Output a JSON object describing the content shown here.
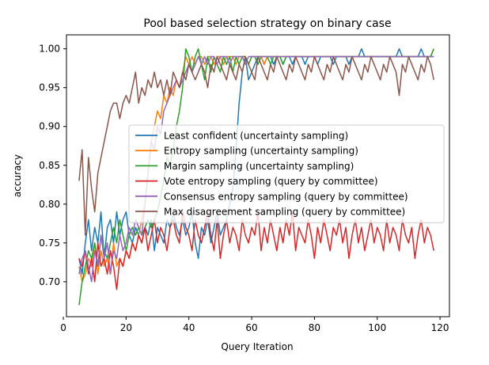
{
  "chart_data": {
    "type": "line",
    "title": "Pool based selection strategy on binary case",
    "xlabel": "Query Iteration",
    "ylabel": "accuracy",
    "xlim": [
      1,
      123
    ],
    "ylim": [
      0.655,
      1.018
    ],
    "x_ticks": [
      0,
      20,
      40,
      60,
      80,
      100,
      120
    ],
    "y_ticks": [
      0.7,
      0.75,
      0.8,
      0.85,
      0.9,
      0.95,
      1.0
    ],
    "y_tick_labels": [
      "0.70",
      "0.75",
      "0.80",
      "0.85",
      "0.90",
      "0.95",
      "1.00"
    ],
    "grid": false,
    "legend_position": "center-right",
    "x": [
      5,
      6,
      7,
      8,
      9,
      10,
      11,
      12,
      13,
      14,
      15,
      16,
      17,
      18,
      19,
      20,
      21,
      22,
      23,
      24,
      25,
      26,
      27,
      28,
      29,
      30,
      31,
      32,
      33,
      34,
      35,
      36,
      37,
      38,
      39,
      40,
      41,
      42,
      43,
      44,
      45,
      46,
      47,
      48,
      49,
      50,
      51,
      52,
      53,
      54,
      55,
      56,
      57,
      58,
      59,
      60,
      61,
      62,
      63,
      64,
      65,
      66,
      67,
      68,
      69,
      70,
      71,
      72,
      73,
      74,
      75,
      76,
      77,
      78,
      79,
      80,
      81,
      82,
      83,
      84,
      85,
      86,
      87,
      88,
      89,
      90,
      91,
      92,
      93,
      94,
      95,
      96,
      97,
      98,
      99,
      100,
      101,
      102,
      103,
      104,
      105,
      106,
      107,
      108,
      109,
      110,
      111,
      112,
      113,
      114,
      115,
      116,
      117,
      118
    ],
    "series": [
      {
        "name": "Least confident (uncertainty sampling)",
        "color": "#1f77b4",
        "values": [
          0.73,
          0.71,
          0.75,
          0.78,
          0.74,
          0.77,
          0.75,
          0.79,
          0.73,
          0.77,
          0.78,
          0.75,
          0.79,
          0.76,
          0.78,
          0.79,
          0.76,
          0.75,
          0.77,
          0.76,
          0.75,
          0.77,
          0.76,
          0.78,
          0.74,
          0.77,
          0.76,
          0.75,
          0.78,
          0.77,
          0.79,
          0.77,
          0.76,
          0.78,
          0.76,
          0.77,
          0.79,
          0.75,
          0.73,
          0.77,
          0.76,
          0.78,
          0.75,
          0.77,
          0.79,
          0.76,
          0.77,
          0.78,
          0.8,
          0.82,
          0.87,
          0.93,
          0.97,
          0.99,
          0.96,
          0.97,
          0.98,
          0.99,
          0.99,
          0.98,
          0.99,
          0.99,
          0.98,
          0.99,
          0.99,
          0.98,
          0.99,
          0.99,
          0.98,
          0.99,
          0.99,
          0.99,
          0.98,
          0.99,
          0.99,
          0.99,
          0.98,
          0.99,
          0.99,
          0.99,
          0.99,
          0.98,
          0.99,
          0.99,
          0.99,
          0.99,
          0.98,
          0.99,
          0.99,
          0.99,
          1.0,
          0.99,
          0.99,
          0.99,
          0.99,
          0.99,
          0.99,
          0.99,
          0.99,
          0.99,
          0.99,
          0.99,
          1.0,
          0.99,
          0.99,
          0.99,
          0.99,
          0.99,
          0.99,
          1.0,
          0.99,
          0.99,
          0.99,
          0.99
        ]
      },
      {
        "name": "Entropy sampling (uncertainty sampling)",
        "color": "#ff7f0e",
        "values": [
          0.72,
          0.7,
          0.71,
          0.73,
          0.72,
          0.75,
          0.71,
          0.74,
          0.72,
          0.73,
          0.71,
          0.75,
          0.72,
          0.73,
          0.72,
          0.74,
          0.73,
          0.75,
          0.74,
          0.76,
          0.78,
          0.8,
          0.84,
          0.88,
          0.9,
          0.92,
          0.91,
          0.94,
          0.93,
          0.95,
          0.94,
          0.96,
          0.95,
          0.97,
          0.99,
          0.98,
          0.99,
          0.98,
          0.99,
          0.99,
          0.98,
          0.99,
          0.99,
          0.98,
          0.99,
          0.99,
          0.98,
          0.99,
          0.99,
          0.99,
          0.98,
          0.99,
          0.99,
          0.99,
          0.98,
          0.99,
          0.99,
          0.99,
          0.99,
          0.98,
          0.99,
          0.99,
          0.99,
          0.99,
          0.99,
          0.99,
          0.99,
          0.99,
          0.99,
          0.99,
          0.99,
          0.99,
          0.99,
          0.99,
          0.99,
          0.99,
          0.99,
          0.99,
          0.99,
          0.99,
          0.99,
          0.99,
          0.99,
          0.99,
          0.99,
          0.99,
          0.99,
          0.99,
          0.99,
          0.99,
          0.99,
          0.99,
          0.99,
          0.99,
          0.99,
          0.99,
          0.99,
          0.99,
          0.99,
          0.99,
          0.99,
          0.99,
          0.99,
          0.99,
          0.99,
          0.99,
          0.99,
          0.99,
          0.99,
          0.99,
          0.99,
          0.99,
          0.99,
          1.0
        ]
      },
      {
        "name": "Margin sampling (uncertainty sampling)",
        "color": "#2ca02c",
        "values": [
          0.67,
          0.7,
          0.72,
          0.74,
          0.73,
          0.75,
          0.72,
          0.76,
          0.74,
          0.73,
          0.75,
          0.77,
          0.75,
          0.78,
          0.76,
          0.74,
          0.76,
          0.77,
          0.76,
          0.77,
          0.76,
          0.77,
          0.78,
          0.77,
          0.78,
          0.79,
          0.81,
          0.83,
          0.86,
          0.85,
          0.87,
          0.9,
          0.92,
          0.95,
          1.0,
          0.99,
          0.97,
          0.99,
          1.0,
          0.98,
          0.96,
          0.99,
          0.97,
          0.99,
          0.98,
          0.97,
          0.99,
          0.98,
          0.99,
          0.97,
          0.99,
          0.98,
          0.99,
          0.99,
          0.98,
          0.99,
          0.99,
          0.98,
          0.99,
          0.99,
          0.99,
          0.98,
          0.99,
          0.99,
          0.99,
          0.98,
          0.99,
          0.99,
          0.99,
          0.99,
          0.99,
          0.99,
          0.99,
          0.99,
          0.99,
          0.99,
          0.99,
          0.99,
          0.99,
          0.99,
          0.99,
          0.99,
          0.99,
          0.99,
          0.99,
          0.99,
          0.99,
          0.99,
          0.99,
          0.99,
          0.99,
          0.99,
          0.99,
          0.99,
          0.99,
          0.99,
          0.99,
          0.99,
          0.99,
          0.99,
          0.99,
          0.99,
          0.99,
          0.99,
          0.99,
          0.99,
          0.99,
          0.99,
          0.99,
          0.99,
          0.99,
          0.99,
          0.99,
          1.0
        ]
      },
      {
        "name": "Vote entropy sampling (query by committee)",
        "color": "#d62728",
        "values": [
          0.73,
          0.72,
          0.74,
          0.71,
          0.73,
          0.7,
          0.75,
          0.72,
          0.73,
          0.71,
          0.74,
          0.72,
          0.69,
          0.73,
          0.72,
          0.74,
          0.73,
          0.75,
          0.74,
          0.76,
          0.75,
          0.77,
          0.74,
          0.76,
          0.78,
          0.75,
          0.77,
          0.76,
          0.74,
          0.77,
          0.78,
          0.76,
          0.75,
          0.79,
          0.77,
          0.76,
          0.74,
          0.78,
          0.76,
          0.75,
          0.77,
          0.79,
          0.76,
          0.74,
          0.78,
          0.73,
          0.76,
          0.78,
          0.75,
          0.77,
          0.76,
          0.74,
          0.78,
          0.76,
          0.75,
          0.77,
          0.76,
          0.79,
          0.74,
          0.77,
          0.75,
          0.78,
          0.76,
          0.74,
          0.77,
          0.75,
          0.78,
          0.76,
          0.79,
          0.74,
          0.77,
          0.76,
          0.75,
          0.78,
          0.76,
          0.73,
          0.77,
          0.75,
          0.78,
          0.76,
          0.74,
          0.77,
          0.76,
          0.78,
          0.75,
          0.77,
          0.73,
          0.76,
          0.78,
          0.75,
          0.77,
          0.74,
          0.76,
          0.78,
          0.75,
          0.77,
          0.76,
          0.74,
          0.78,
          0.75,
          0.77,
          0.76,
          0.74,
          0.78,
          0.76,
          0.75,
          0.77,
          0.73,
          0.76,
          0.78,
          0.75,
          0.77,
          0.76,
          0.74
        ]
      },
      {
        "name": "Consensus entropy sampling (query by committee)",
        "color": "#9467bd",
        "values": [
          0.71,
          0.73,
          0.74,
          0.72,
          0.7,
          0.74,
          0.72,
          0.76,
          0.73,
          0.75,
          0.71,
          0.74,
          0.73,
          0.76,
          0.74,
          0.75,
          0.77,
          0.76,
          0.78,
          0.77,
          0.76,
          0.8,
          0.84,
          0.88,
          0.87,
          0.9,
          0.89,
          0.92,
          0.93,
          0.94,
          0.95,
          0.96,
          0.95,
          0.96,
          0.97,
          0.98,
          0.97,
          0.98,
          0.99,
          0.98,
          0.99,
          0.98,
          0.99,
          0.99,
          0.98,
          0.99,
          0.99,
          0.99,
          0.98,
          0.99,
          0.99,
          0.99,
          0.99,
          0.98,
          0.99,
          0.99,
          0.99,
          0.99,
          0.99,
          0.99,
          0.99,
          0.99,
          0.99,
          0.99,
          0.99,
          0.99,
          0.99,
          0.99,
          0.99,
          0.99,
          0.99,
          0.99,
          0.99,
          0.99,
          0.99,
          0.99,
          0.99,
          0.99,
          0.99,
          0.99,
          0.99,
          0.99,
          0.99,
          0.99,
          0.99,
          0.99,
          0.99,
          0.99,
          0.99,
          0.99,
          0.99,
          0.99,
          0.99,
          0.99,
          0.99,
          0.99,
          0.99,
          0.99,
          0.99,
          0.99,
          0.99,
          0.99,
          0.99,
          0.99,
          0.99,
          0.99,
          0.99,
          0.99,
          0.99,
          0.99,
          0.99,
          0.99,
          0.99,
          0.99
        ]
      },
      {
        "name": "Max disagreement sampling (query by committee)",
        "color": "#8c564b",
        "values": [
          0.83,
          0.87,
          0.76,
          0.86,
          0.82,
          0.79,
          0.84,
          0.86,
          0.88,
          0.9,
          0.92,
          0.93,
          0.93,
          0.91,
          0.93,
          0.94,
          0.93,
          0.95,
          0.97,
          0.93,
          0.95,
          0.94,
          0.96,
          0.95,
          0.97,
          0.95,
          0.96,
          0.94,
          0.96,
          0.94,
          0.97,
          0.96,
          0.95,
          0.97,
          0.96,
          0.98,
          0.97,
          0.96,
          0.97,
          0.98,
          0.97,
          0.95,
          0.98,
          0.97,
          0.99,
          0.98,
          0.97,
          0.96,
          0.98,
          0.97,
          0.96,
          0.98,
          0.97,
          0.99,
          0.98,
          0.97,
          0.96,
          0.99,
          0.98,
          0.97,
          0.96,
          0.98,
          0.97,
          0.99,
          0.98,
          0.97,
          0.96,
          0.98,
          0.97,
          0.99,
          0.98,
          0.97,
          0.96,
          0.98,
          0.97,
          0.99,
          0.98,
          0.97,
          0.96,
          0.98,
          0.97,
          0.99,
          0.98,
          0.97,
          0.96,
          0.98,
          0.97,
          0.99,
          0.98,
          0.97,
          0.96,
          0.98,
          0.97,
          0.99,
          0.98,
          0.97,
          0.96,
          0.98,
          0.97,
          0.99,
          0.98,
          0.97,
          0.94,
          0.98,
          0.97,
          0.99,
          0.98,
          0.97,
          0.96,
          0.98,
          0.97,
          0.99,
          0.98,
          0.96
        ]
      }
    ]
  }
}
